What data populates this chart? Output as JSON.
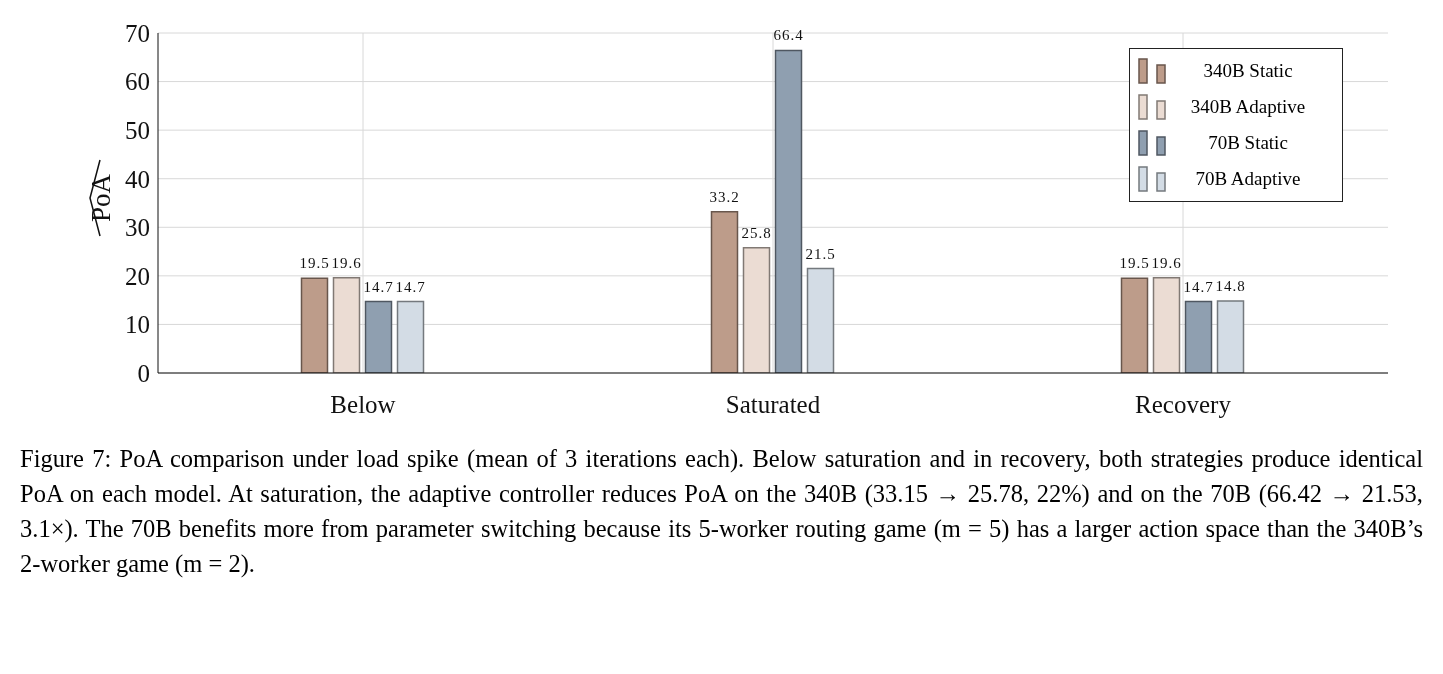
{
  "chart_data": {
    "type": "bar",
    "ylabel": "PoA",
    "categories": [
      "Below",
      "Saturated",
      "Recovery"
    ],
    "series": [
      {
        "name": "340B Static",
        "color": "#bd9c8a",
        "values": [
          19.5,
          33.2,
          19.5
        ]
      },
      {
        "name": "340B Adaptive",
        "color": "#ebdcd3",
        "values": [
          19.6,
          25.8,
          19.6
        ]
      },
      {
        "name": "70B Static",
        "color": "#8f9fb0",
        "values": [
          14.7,
          66.4,
          14.7
        ]
      },
      {
        "name": "70B Adaptive",
        "color": "#d3dce5",
        "values": [
          14.7,
          21.5,
          14.8
        ]
      }
    ],
    "ylim": [
      0,
      70
    ],
    "yticks": [
      0,
      10,
      20,
      30,
      40,
      50,
      60,
      70
    ],
    "grid": true,
    "legend": "top right",
    "data_labels": true,
    "annotations": [
      "Figure 7: PoA comparison under load spike (mean of 3 iterations each). Below saturation and in recovery, both strategies produce identical PoA on each model. At saturation, the adaptive controller reduces PoA on the 340B (33.15 → 25.78, 22%) and on the 70B (66.42 → 21.53, 3.1×). The 70B benefits more from parameter switching because its 5-worker routing game (m = 5) has a larger action space than the 340B’s 2-worker game (m = 2)."
    ]
  }
}
